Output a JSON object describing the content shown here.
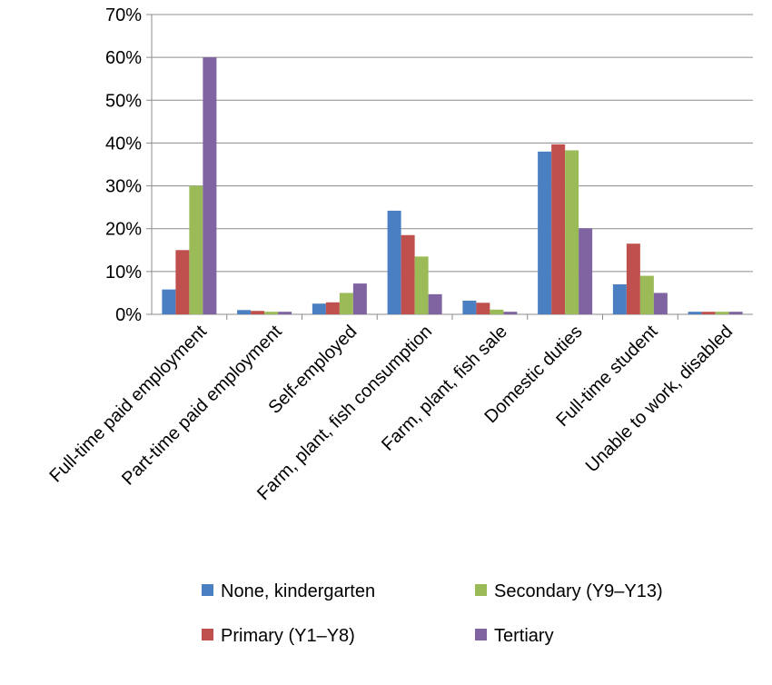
{
  "chart_data": {
    "type": "bar",
    "title": "",
    "xlabel": "",
    "ylabel": "",
    "ylim": [
      0,
      70
    ],
    "yticks": [
      0,
      10,
      20,
      30,
      40,
      50,
      60,
      70
    ],
    "ytick_format": "{v}%",
    "grid": true,
    "legend_position": "bottom",
    "categories": [
      "Full-time paid employment",
      "Part-time paid employment",
      "Self-employed",
      "Farm, plant, fish consumption",
      "Farm, plant, fish sale",
      "Domestic duties",
      "Full-time student",
      "Unable to work, disabled"
    ],
    "series": [
      {
        "name": "None, kindergarten",
        "color": "#4a7fc1",
        "values": [
          5.8,
          1.0,
          2.5,
          24.2,
          3.2,
          38.0,
          7.0,
          0.6
        ]
      },
      {
        "name": "Primary (Y1–Y8)",
        "color": "#c0504d",
        "values": [
          15.0,
          0.8,
          2.8,
          18.5,
          2.7,
          39.7,
          16.5,
          0.6
        ]
      },
      {
        "name": "Secondary (Y9–Y13)",
        "color": "#9bbb59",
        "values": [
          30.0,
          0.6,
          5.0,
          13.5,
          1.1,
          38.3,
          9.0,
          0.6
        ]
      },
      {
        "name": "Tertiary",
        "color": "#8064a2",
        "values": [
          60.0,
          0.6,
          7.2,
          4.7,
          0.6,
          20.1,
          5.0,
          0.6
        ]
      }
    ],
    "legend_order": [
      0,
      2,
      1,
      3
    ]
  }
}
